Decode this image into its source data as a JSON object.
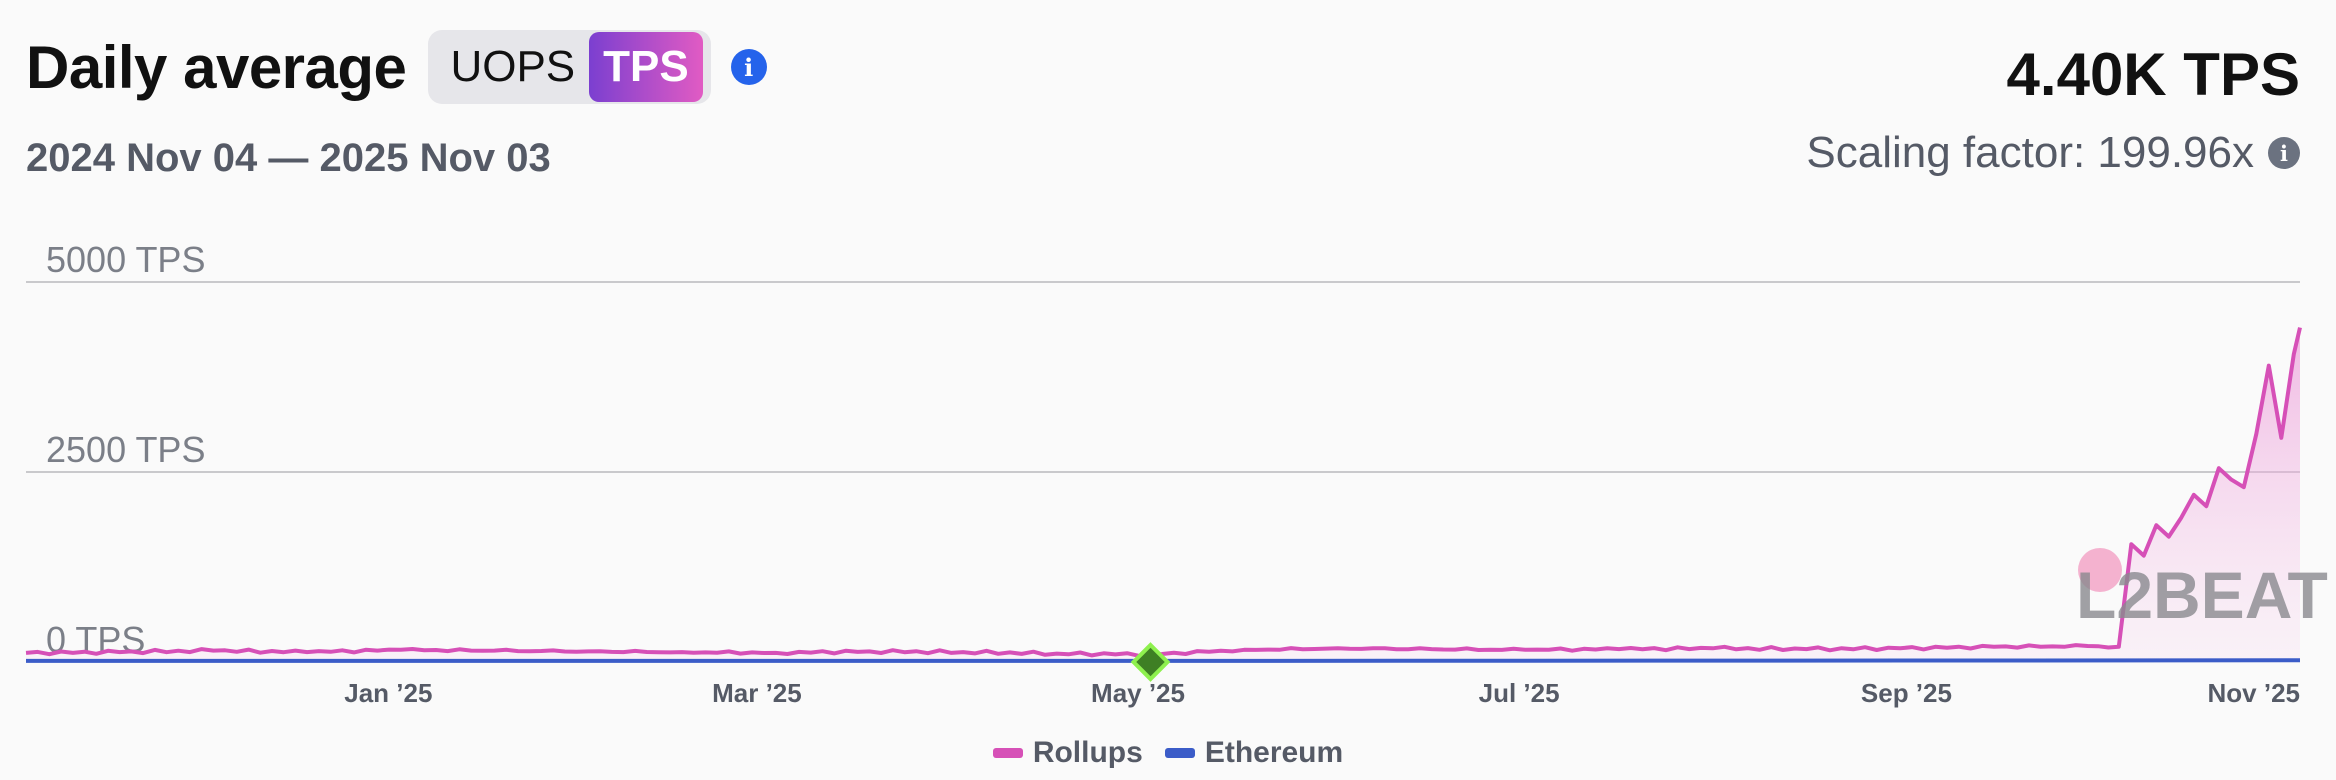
{
  "header": {
    "title": "Daily average",
    "toggle": {
      "options": [
        "UOPS",
        "TPS"
      ],
      "selected": "TPS"
    },
    "info_icon": "info-icon",
    "date_range": "2024 Nov 04 — 2025 Nov 03",
    "total_value": "4.40K TPS",
    "scaling_factor": "Scaling factor: 199.96x"
  },
  "colors": {
    "rollups": "#d650b7",
    "rollups_fill": "#f3c6e6",
    "ethereum": "#3b5cc8",
    "grid": "#c9c9cc",
    "accent_gradient_start": "#7b3fd0",
    "accent_gradient_end": "#e15bc3",
    "marker": "#3e7f24",
    "marker_border": "#8ef04e"
  },
  "watermark": {
    "text": "L2BEAT"
  },
  "chart_data": {
    "type": "area",
    "x_range": [
      "2024-11-04",
      "2025-11-03"
    ],
    "ylim": [
      0,
      5000
    ],
    "y_ticks": [
      {
        "value": 0,
        "label": "0 TPS"
      },
      {
        "value": 2500,
        "label": "2500 TPS"
      },
      {
        "value": 5000,
        "label": "5000 TPS"
      }
    ],
    "x_ticks": [
      {
        "date": "2025-01-01",
        "label": "Jan ’25"
      },
      {
        "date": "2025-03-01",
        "label": "Mar ’25"
      },
      {
        "date": "2025-05-01",
        "label": "May ’25"
      },
      {
        "date": "2025-07-01",
        "label": "Jul ’25"
      },
      {
        "date": "2025-09-01",
        "label": "Sep ’25"
      },
      {
        "date": "2025-11-01",
        "label": "Nov ’25"
      }
    ],
    "grid": true,
    "legend_position": "bottom-center",
    "series": [
      {
        "name": "Rollups",
        "points": [
          [
            "2024-11-04",
            120
          ],
          [
            "2024-11-19",
            130
          ],
          [
            "2024-12-04",
            150
          ],
          [
            "2024-12-19",
            130
          ],
          [
            "2025-01-03",
            160
          ],
          [
            "2025-01-18",
            150
          ],
          [
            "2025-02-02",
            140
          ],
          [
            "2025-02-17",
            130
          ],
          [
            "2025-03-04",
            120
          ],
          [
            "2025-03-19",
            140
          ],
          [
            "2025-04-03",
            130
          ],
          [
            "2025-04-18",
            110
          ],
          [
            "2025-05-03",
            100
          ],
          [
            "2025-05-18",
            160
          ],
          [
            "2025-06-02",
            180
          ],
          [
            "2025-06-17",
            170
          ],
          [
            "2025-07-02",
            160
          ],
          [
            "2025-07-17",
            170
          ],
          [
            "2025-08-01",
            180
          ],
          [
            "2025-08-16",
            170
          ],
          [
            "2025-08-31",
            180
          ],
          [
            "2025-09-15",
            200
          ],
          [
            "2025-09-30",
            210
          ],
          [
            "2025-10-05",
            200
          ],
          [
            "2025-10-07",
            1550
          ],
          [
            "2025-10-09",
            1400
          ],
          [
            "2025-10-11",
            1800
          ],
          [
            "2025-10-13",
            1650
          ],
          [
            "2025-10-15",
            1900
          ],
          [
            "2025-10-17",
            2200
          ],
          [
            "2025-10-19",
            2050
          ],
          [
            "2025-10-21",
            2550
          ],
          [
            "2025-10-23",
            2400
          ],
          [
            "2025-10-25",
            2300
          ],
          [
            "2025-10-27",
            3000
          ],
          [
            "2025-10-29",
            3900
          ],
          [
            "2025-10-31",
            2950
          ],
          [
            "2025-11-02",
            4050
          ],
          [
            "2025-11-03",
            4400
          ]
        ]
      },
      {
        "name": "Ethereum",
        "points": [
          [
            "2024-11-04",
            14
          ],
          [
            "2025-05-03",
            14
          ],
          [
            "2025-11-03",
            22
          ]
        ]
      }
    ],
    "annotations": [
      {
        "type": "marker",
        "date": "2025-05-03",
        "value": 0
      }
    ]
  }
}
